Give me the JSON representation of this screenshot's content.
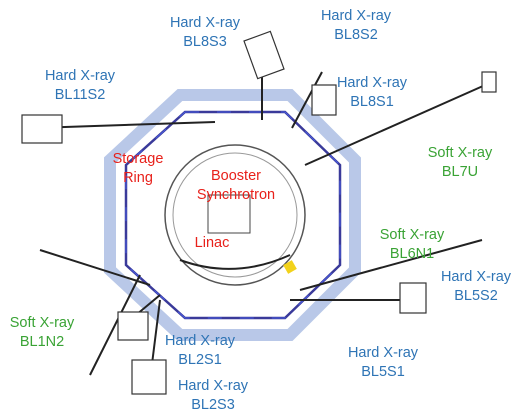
{
  "beamlines": [
    {
      "type": "Hard X-ray",
      "name": "BL8S3"
    },
    {
      "type": "Hard X-ray",
      "name": "BL8S2"
    },
    {
      "type": "Hard X-ray",
      "name": "BL11S2"
    },
    {
      "type": "Hard X-ray",
      "name": "BL8S1"
    },
    {
      "type": "Soft X-ray",
      "name": "BL7U"
    },
    {
      "type": "Soft X-ray",
      "name": "BL6N1"
    },
    {
      "type": "Hard X-ray",
      "name": "BL5S2"
    },
    {
      "type": "Soft X-ray",
      "name": "BL1N2"
    },
    {
      "type": "Hard X-ray",
      "name": "BL2S1"
    },
    {
      "type": "Hard X-ray",
      "name": "BL5S1"
    },
    {
      "type": "Hard X-ray",
      "name": "BL2S3"
    }
  ],
  "machines": [
    {
      "line1": "Storage",
      "line2": "Ring"
    },
    {
      "line1": "Booster",
      "line2": "Synchrotron"
    },
    {
      "line1": "Linac"
    }
  ]
}
